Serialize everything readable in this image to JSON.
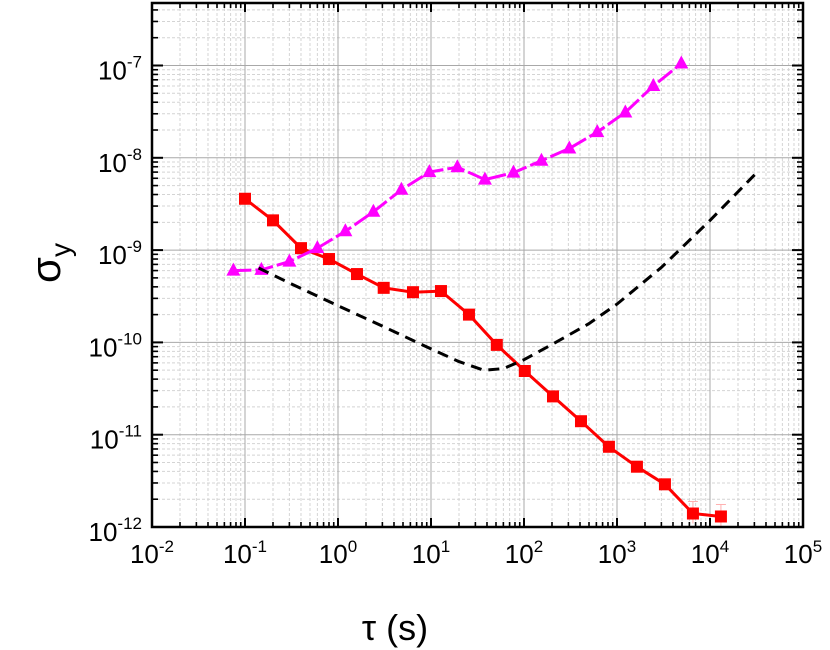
{
  "chart_data": {
    "type": "line",
    "title": "",
    "xlabel": "τ (s)",
    "ylabel": "σ_y",
    "xscale": "log",
    "yscale": "log",
    "xlim": [
      0.01,
      100000
    ],
    "ylim": [
      1e-12,
      4.8e-07
    ],
    "x_tick_labels": [
      "10^-2",
      "10^-1",
      "10^0",
      "10^1",
      "10^2",
      "10^3",
      "10^4",
      "10^5"
    ],
    "y_tick_labels": [
      "10^-12",
      "10^-11",
      "10^-10",
      "10^-9",
      "10^-8",
      "10^-7"
    ],
    "grid": {
      "major": true,
      "minor": true,
      "minor_style": "dashed"
    },
    "legend": null,
    "series": [
      {
        "name": "red-squares",
        "color": "#ff0000",
        "marker": "square",
        "line_style": "solid",
        "x": [
          0.1,
          0.2,
          0.4,
          0.8,
          1.6,
          3.1,
          6.4,
          12.8,
          25.6,
          51,
          102,
          205,
          410,
          819,
          1638,
          3277,
          6554,
          13107
        ],
        "values": [
          3.6e-09,
          2.1e-09,
          1.05e-09,
          8e-10,
          5.5e-10,
          3.9e-10,
          3.5e-10,
          3.6e-10,
          2e-10,
          9.4e-11,
          4.9e-11,
          2.6e-11,
          1.4e-11,
          7.4e-12,
          4.5e-12,
          2.9e-12,
          1.4e-12,
          1.3e-12
        ]
      },
      {
        "name": "magenta-triangles",
        "color": "#ff00ff",
        "marker": "triangle",
        "line_style": "dashed",
        "x": [
          0.075,
          0.15,
          0.3,
          0.6,
          1.2,
          2.4,
          4.8,
          9.6,
          19.2,
          38,
          77,
          154,
          307,
          614,
          1229,
          2458,
          4915
        ],
        "values": [
          6e-10,
          6.1e-10,
          7.5e-10,
          1.05e-09,
          1.6e-09,
          2.6e-09,
          4.5e-09,
          7e-09,
          7.9e-09,
          5.8e-09,
          6.9e-09,
          9.3e-09,
          1.26e-08,
          1.9e-08,
          3.1e-08,
          6e-08,
          1.05e-07
        ]
      },
      {
        "name": "black-dashed-curve",
        "color": "#000000",
        "marker": "none",
        "line_style": "dashed",
        "x": [
          0.14,
          0.3,
          1,
          3,
          10,
          20,
          37,
          60,
          100,
          200,
          500,
          1000,
          3000,
          10000,
          34000
        ],
        "values": [
          6.4e-10,
          4.4e-10,
          2.5e-10,
          1.5e-10,
          8.5e-11,
          6.2e-11,
          5e-11,
          5.2e-11,
          6.5e-11,
          9.5e-11,
          1.6e-10,
          2.6e-10,
          6.5e-10,
          2.1e-09,
          7.4e-09
        ]
      }
    ]
  },
  "axes": {
    "x_title_symbol": "τ",
    "x_title_unit": "(s)",
    "y_title_symbol": "σ",
    "y_title_sub": "y",
    "x_ticks": [
      {
        "base": "10",
        "exp": "-2"
      },
      {
        "base": "10",
        "exp": "-1"
      },
      {
        "base": "10",
        "exp": "0"
      },
      {
        "base": "10",
        "exp": "1"
      },
      {
        "base": "10",
        "exp": "2"
      },
      {
        "base": "10",
        "exp": "3"
      },
      {
        "base": "10",
        "exp": "4"
      },
      {
        "base": "10",
        "exp": "5"
      }
    ],
    "y_ticks": [
      {
        "base": "10",
        "exp": "-7"
      },
      {
        "base": "10",
        "exp": "-8"
      },
      {
        "base": "10",
        "exp": "-9"
      },
      {
        "base": "10",
        "exp": "-10"
      },
      {
        "base": "10",
        "exp": "-11"
      },
      {
        "base": "10",
        "exp": "-12"
      }
    ]
  }
}
